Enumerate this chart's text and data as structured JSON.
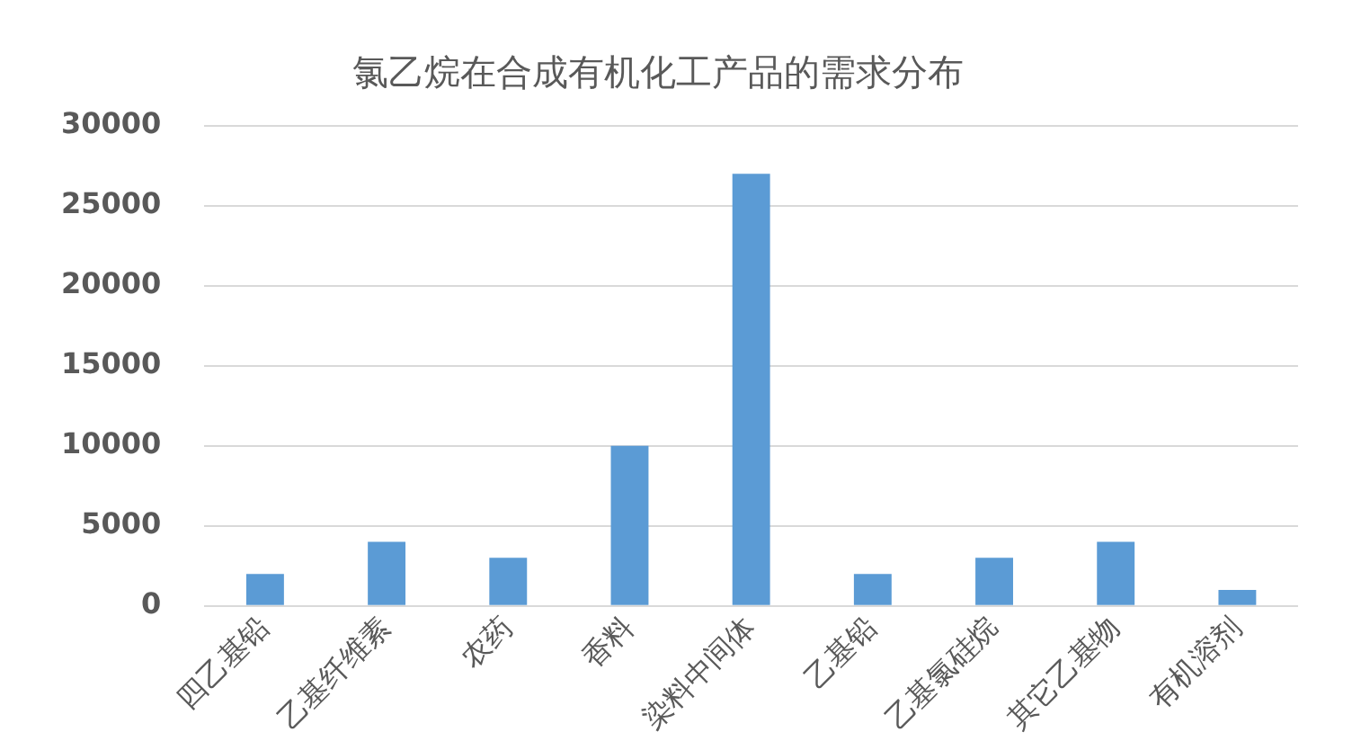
{
  "chart_data": {
    "type": "bar",
    "title": "氯乙烷在合成有机化工产品的需求分布",
    "categories": [
      "四乙基铅",
      "乙基纤维素",
      "农药",
      "香料",
      "染料中间体",
      "乙基铅",
      "乙基氯硅烷",
      "其它乙基物",
      "有机溶剂"
    ],
    "values": [
      2000,
      4000,
      3000,
      10000,
      27000,
      2000,
      3000,
      4000,
      1000
    ],
    "color": "#5b9bd5",
    "ylim": [
      0,
      30000
    ],
    "yticks": [
      0,
      5000,
      10000,
      15000,
      20000,
      25000,
      30000
    ],
    "grid": "y",
    "legend": false
  }
}
